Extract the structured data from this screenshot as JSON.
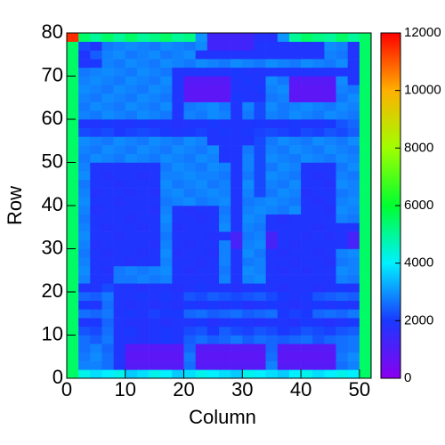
{
  "chart_data": {
    "type": "heatmap",
    "xlabel": "Column",
    "ylabel": "Row",
    "xlim": [
      0,
      52
    ],
    "ylim": [
      0,
      80
    ],
    "xticks": [
      0,
      10,
      20,
      30,
      40,
      50
    ],
    "yticks": [
      0,
      10,
      20,
      30,
      40,
      50,
      60,
      70,
      80
    ],
    "zlim": [
      0,
      12000
    ],
    "zticks": [
      0,
      2000,
      4000,
      6000,
      8000,
      10000,
      12000
    ],
    "colors": [
      "#8a00f0",
      "#1a38ff",
      "#00f0ff",
      "#00ff30",
      "#a0ff00",
      "#ffb000",
      "#ff0000"
    ],
    "z": [
      [
        5500,
        4200,
        3800,
        4000,
        4200,
        3600,
        3800,
        4200,
        4000,
        3600,
        3800,
        4200,
        4000,
        3800,
        3600,
        4200,
        4000,
        3800,
        3600,
        4000,
        4200,
        3800,
        4000,
        4200,
        4000,
        5500
      ],
      [
        5500,
        2800,
        2800,
        2600,
        1900,
        900,
        900,
        900,
        900,
        900,
        2600,
        900,
        900,
        900,
        900,
        900,
        900,
        2800,
        900,
        900,
        900,
        900,
        900,
        2600,
        2800,
        5500
      ],
      [
        5500,
        2700,
        2900,
        2600,
        1900,
        800,
        800,
        800,
        800,
        800,
        2700,
        800,
        800,
        800,
        800,
        800,
        800,
        2600,
        800,
        800,
        800,
        800,
        800,
        2700,
        2900,
        5500
      ],
      [
        5500,
        2600,
        2800,
        2500,
        1900,
        900,
        900,
        900,
        900,
        900,
        2500,
        900,
        900,
        900,
        900,
        900,
        900,
        2500,
        900,
        900,
        900,
        900,
        900,
        2600,
        2700,
        5500
      ],
      [
        5500,
        2600,
        2400,
        2700,
        1900,
        1900,
        1800,
        1900,
        2000,
        1900,
        2400,
        2600,
        2400,
        2500,
        2700,
        2400,
        2600,
        2500,
        2400,
        2500,
        2600,
        2300,
        2500,
        2600,
        2700,
        5500
      ],
      [
        5500,
        2300,
        2200,
        2600,
        1900,
        2000,
        1800,
        1900,
        2000,
        1900,
        2200,
        2300,
        2000,
        2400,
        2200,
        2100,
        2300,
        2200,
        2000,
        2100,
        2300,
        2200,
        2100,
        2300,
        2400,
        5500
      ],
      [
        5500,
        1900,
        2000,
        2500,
        1900,
        1800,
        1800,
        1900,
        1800,
        1900,
        1900,
        2000,
        1800,
        1900,
        2000,
        1900,
        1800,
        1900,
        1900,
        1800,
        2000,
        1900,
        1800,
        1900,
        2000,
        5500
      ],
      [
        5500,
        2600,
        2500,
        2700,
        1900,
        2000,
        1900,
        2100,
        2000,
        2000,
        2500,
        2600,
        2400,
        2500,
        2600,
        2400,
        2500,
        2600,
        2000,
        2100,
        2000,
        2500,
        2600,
        2500,
        2700,
        5500
      ],
      [
        5500,
        2000,
        1900,
        2600,
        1900,
        1800,
        1900,
        1800,
        1900,
        1800,
        2000,
        1900,
        2000,
        1900,
        2000,
        1800,
        1900,
        2000,
        1900,
        1800,
        1900,
        2000,
        1900,
        2000,
        1900,
        5500
      ],
      [
        5500,
        2500,
        2400,
        2700,
        1900,
        1900,
        2000,
        1900,
        2000,
        1900,
        2300,
        2200,
        2400,
        2300,
        2200,
        2300,
        2400,
        2200,
        2000,
        1900,
        2000,
        2300,
        2400,
        2500,
        2400,
        5500
      ],
      [
        5500,
        1900,
        1900,
        2200,
        1900,
        1900,
        1800,
        1900,
        1900,
        1800,
        1900,
        2000,
        1900,
        1900,
        1800,
        1900,
        2000,
        1900,
        1800,
        1900,
        1900,
        1800,
        1900,
        2000,
        1900,
        5500
      ],
      [
        5500,
        2800,
        1900,
        1900,
        2700,
        2700,
        2800,
        2700,
        2800,
        1900,
        1900,
        1900,
        1900,
        2800,
        1900,
        2800,
        2900,
        1900,
        1900,
        1900,
        1900,
        1900,
        1900,
        2800,
        2700,
        5500
      ],
      [
        5500,
        2900,
        1900,
        1800,
        2700,
        2800,
        2700,
        2800,
        2900,
        1900,
        1800,
        1900,
        1900,
        2700,
        1900,
        2900,
        2800,
        1900,
        1800,
        1900,
        1800,
        1900,
        1900,
        2900,
        2800,
        5500
      ],
      [
        5500,
        2800,
        1900,
        1900,
        1900,
        1800,
        1900,
        1900,
        2800,
        1900,
        1900,
        1800,
        1900,
        2800,
        1900,
        2700,
        2800,
        1900,
        1900,
        1800,
        1900,
        1900,
        1800,
        2700,
        2800,
        5500
      ],
      [
        5500,
        2700,
        1900,
        1800,
        1900,
        1900,
        1800,
        1900,
        2900,
        1800,
        1900,
        1900,
        1800,
        2800,
        1900,
        2900,
        2700,
        1900,
        1800,
        1900,
        1900,
        1800,
        1900,
        2800,
        2900,
        5500
      ],
      [
        5500,
        2800,
        1800,
        1900,
        1900,
        1900,
        1900,
        1800,
        2800,
        1900,
        1800,
        1900,
        1900,
        2800,
        1200,
        2800,
        2900,
        1200,
        1900,
        1800,
        1900,
        1900,
        1900,
        1900,
        1200,
        5500
      ],
      [
        5500,
        2900,
        1900,
        1900,
        1800,
        1900,
        1900,
        1900,
        2700,
        1900,
        1900,
        1900,
        1800,
        1900,
        1200,
        2700,
        2800,
        1200,
        1900,
        1900,
        1800,
        1900,
        1800,
        1900,
        1200,
        5500
      ],
      [
        5500,
        2800,
        1900,
        1800,
        1900,
        1900,
        1800,
        1900,
        2800,
        1800,
        1900,
        1900,
        1900,
        2900,
        1900,
        2800,
        2700,
        1900,
        1900,
        1900,
        1900,
        1800,
        1900,
        1900,
        1900,
        5500
      ],
      [
        5500,
        2700,
        1900,
        1900,
        1900,
        1800,
        1900,
        1900,
        2900,
        1900,
        1900,
        1800,
        1900,
        2800,
        1900,
        2900,
        2800,
        1900,
        1800,
        1900,
        1900,
        1900,
        1900,
        2800,
        2700,
        5500
      ],
      [
        5500,
        2800,
        1800,
        1900,
        1900,
        1900,
        1900,
        1800,
        2800,
        1900,
        1800,
        1900,
        1900,
        2700,
        1900,
        2800,
        2900,
        2800,
        2700,
        2900,
        1900,
        1900,
        1800,
        2900,
        2800,
        5500
      ],
      [
        5500,
        2900,
        1900,
        1900,
        1800,
        1900,
        1900,
        1900,
        2700,
        2800,
        2900,
        2700,
        2800,
        2900,
        1900,
        2700,
        2800,
        2900,
        2800,
        2700,
        1900,
        1800,
        1900,
        2800,
        2900,
        5500
      ],
      [
        5500,
        2800,
        1800,
        1900,
        1900,
        1800,
        1900,
        1800,
        2800,
        2900,
        2700,
        2800,
        2900,
        2800,
        1900,
        2800,
        2200,
        2700,
        2900,
        2800,
        1800,
        1900,
        1900,
        2700,
        2800,
        5500
      ],
      [
        5500,
        2700,
        1900,
        1900,
        1800,
        1900,
        1900,
        1900,
        2900,
        2700,
        2800,
        2900,
        2700,
        2800,
        1900,
        2900,
        2200,
        2800,
        2700,
        2900,
        1900,
        1900,
        1800,
        2900,
        2800,
        5500
      ],
      [
        5500,
        2900,
        1900,
        1800,
        1900,
        1900,
        1800,
        1900,
        2800,
        2800,
        2900,
        2800,
        2800,
        2700,
        1900,
        2700,
        2200,
        2900,
        2800,
        2700,
        1900,
        1800,
        1900,
        2800,
        2700,
        5500
      ],
      [
        5500,
        2800,
        1900,
        1900,
        1900,
        1900,
        1900,
        1900,
        2700,
        2900,
        2800,
        2700,
        2900,
        2800,
        1900,
        2800,
        2200,
        2700,
        2900,
        2800,
        1900,
        1900,
        1900,
        2700,
        2900,
        5500
      ],
      [
        5500,
        2700,
        2900,
        2800,
        2700,
        2900,
        2800,
        2700,
        2900,
        2800,
        2700,
        2900,
        2800,
        1900,
        1900,
        2800,
        2200,
        2900,
        2800,
        2700,
        2900,
        2800,
        2700,
        2900,
        2800,
        5500
      ],
      [
        5500,
        2800,
        2700,
        2900,
        2800,
        2700,
        2900,
        2800,
        2700,
        2900,
        2800,
        2700,
        2900,
        1900,
        1900,
        2700,
        2200,
        2800,
        2700,
        2900,
        2800,
        2700,
        2900,
        2800,
        2700,
        5500
      ],
      [
        5500,
        2900,
        2800,
        2700,
        2900,
        2800,
        2700,
        2900,
        2800,
        2700,
        2900,
        2800,
        1900,
        1900,
        1900,
        1900,
        2200,
        2700,
        2900,
        2800,
        2700,
        2900,
        2800,
        2700,
        2900,
        5500
      ],
      [
        5500,
        2200,
        2100,
        2200,
        2000,
        2100,
        2200,
        2100,
        2000,
        1900,
        2000,
        2100,
        1900,
        2000,
        1900,
        2000,
        2100,
        2200,
        2100,
        2000,
        2200,
        2100,
        2300,
        2200,
        2400,
        5500
      ],
      [
        5500,
        1900,
        1900,
        2000,
        1900,
        1900,
        2000,
        1900,
        1900,
        1800,
        1900,
        1900,
        2000,
        1900,
        1900,
        1900,
        2000,
        1900,
        1900,
        2000,
        1900,
        1900,
        2000,
        2300,
        2500,
        5500
      ],
      [
        5500,
        2800,
        2700,
        2900,
        2800,
        2700,
        2900,
        2800,
        2700,
        1900,
        2800,
        2700,
        2900,
        2800,
        1900,
        2700,
        2200,
        2800,
        2700,
        2900,
        2800,
        2700,
        2900,
        2800,
        2700,
        5500
      ],
      [
        5500,
        2700,
        2900,
        2800,
        2700,
        2900,
        2800,
        2700,
        2900,
        1900,
        2700,
        2800,
        2900,
        2700,
        1900,
        2800,
        2200,
        2900,
        2700,
        2800,
        2900,
        2800,
        2700,
        2900,
        2800,
        5500
      ],
      [
        5500,
        2800,
        2700,
        2900,
        2800,
        2700,
        2900,
        2800,
        2700,
        1900,
        800,
        800,
        800,
        800,
        2000,
        1900,
        1900,
        2700,
        2800,
        800,
        800,
        800,
        800,
        2700,
        2900,
        5500
      ],
      [
        5500,
        2900,
        2800,
        2700,
        2900,
        2800,
        2700,
        2900,
        2800,
        1900,
        800,
        800,
        800,
        800,
        1900,
        1900,
        2000,
        2800,
        2900,
        800,
        800,
        800,
        800,
        2800,
        2700,
        5500
      ],
      [
        5500,
        2800,
        2900,
        2800,
        2700,
        2900,
        2800,
        2700,
        2900,
        1900,
        900,
        900,
        900,
        900,
        1900,
        2000,
        1900,
        2900,
        2700,
        900,
        900,
        900,
        900,
        2900,
        1900,
        5500
      ],
      [
        5500,
        2700,
        2800,
        2900,
        2800,
        2700,
        2900,
        2800,
        2700,
        1900,
        1900,
        1900,
        1900,
        1900,
        2000,
        1900,
        1900,
        1900,
        1900,
        1900,
        1900,
        1900,
        1900,
        1900,
        1900,
        5500
      ],
      [
        5500,
        1900,
        2000,
        2800,
        2700,
        2900,
        2800,
        2700,
        2900,
        2800,
        2700,
        2900,
        2800,
        2700,
        2900,
        2800,
        2700,
        2900,
        2800,
        2700,
        2900,
        2800,
        2700,
        2900,
        1900,
        5500
      ],
      [
        5500,
        1900,
        2400,
        2800,
        2900,
        2700,
        2800,
        2900,
        2700,
        2800,
        2900,
        1900,
        1900,
        1900,
        1900,
        1900,
        1900,
        1900,
        1900,
        1900,
        1900,
        1900,
        2800,
        2700,
        1900,
        5500
      ],
      [
        5500,
        2200,
        1900,
        2700,
        2800,
        2900,
        2800,
        2700,
        2900,
        2800,
        2700,
        2900,
        1300,
        1300,
        1300,
        1300,
        1900,
        1900,
        1900,
        1900,
        1900,
        1900,
        2900,
        2800,
        1900,
        5500
      ],
      [
        11500,
        5500,
        5000,
        5500,
        5000,
        5500,
        5000,
        5200,
        5500,
        5000,
        5200,
        3000,
        1300,
        1300,
        1300,
        1300,
        1800,
        1800,
        3000,
        5000,
        5500,
        5200,
        5000,
        5500,
        5000,
        5500
      ]
    ]
  }
}
